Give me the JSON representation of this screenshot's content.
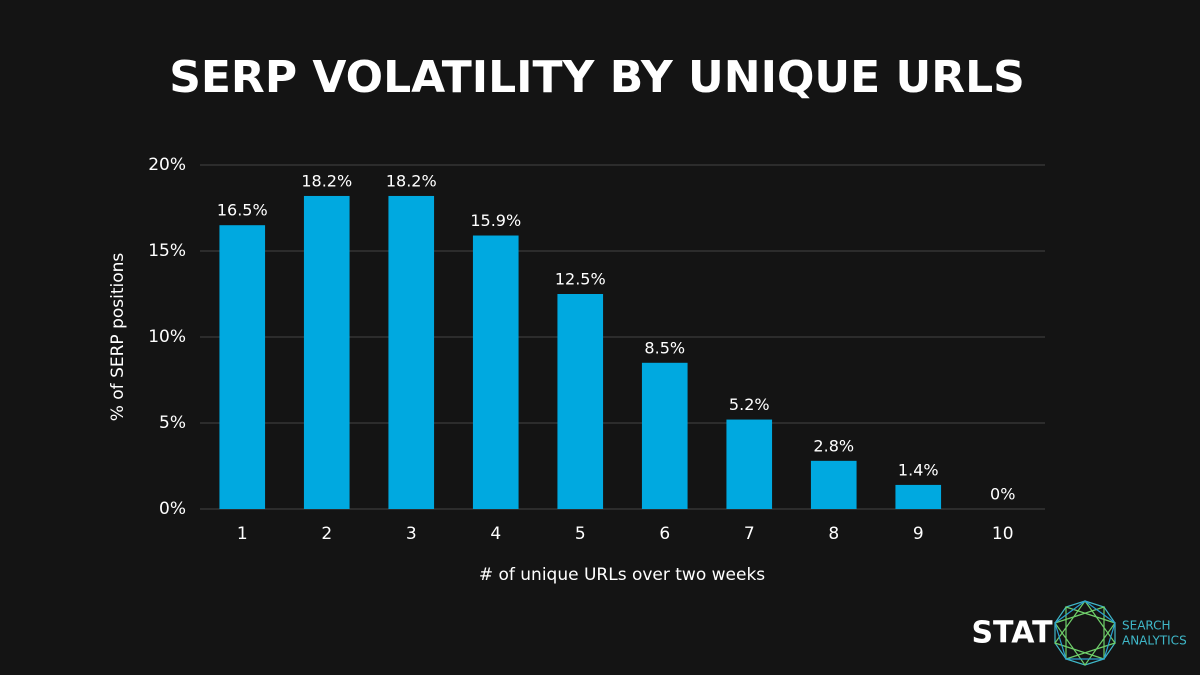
{
  "chart_data": {
    "type": "bar",
    "title": "SERP VOLATILITY BY UNIQUE URLS",
    "x_label": "# of unique URLs over two weeks",
    "y_label": "% of SERP positions",
    "categories": [
      "1",
      "2",
      "3",
      "4",
      "5",
      "6",
      "7",
      "8",
      "9",
      "10"
    ],
    "values": [
      16.5,
      18.2,
      18.2,
      15.9,
      12.5,
      8.5,
      5.2,
      2.8,
      1.4,
      0
    ],
    "value_labels": [
      "16.5%",
      "18.2%",
      "18.2%",
      "15.9%",
      "12.5%",
      "8.5%",
      "5.2%",
      "2.8%",
      "1.4%",
      "0%"
    ],
    "color": "#00a9e0",
    "ylim": [
      0,
      20
    ],
    "yticks": [
      {
        "value": 0,
        "label": "0%"
      },
      {
        "value": 5,
        "label": "5%"
      },
      {
        "value": 10,
        "label": "10%"
      },
      {
        "value": 15,
        "label": "15%"
      },
      {
        "value": 20,
        "label": "20%"
      }
    ],
    "grid": true
  },
  "logo": {
    "name": "STAT",
    "tagline": [
      "SEARCH",
      "ANALYTICS"
    ]
  }
}
